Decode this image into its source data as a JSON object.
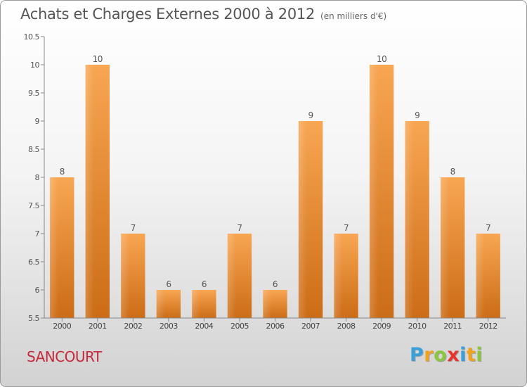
{
  "header": {
    "title": "Achats et Charges Externes 2000 à 2012",
    "subtitle": "(en milliers d'€)"
  },
  "footer": {
    "commune": "SANCOURT",
    "logo_letters": [
      "P",
      "r",
      "o",
      "x",
      "i",
      "t",
      "i"
    ],
    "logo_colors": [
      "#3aa0dc",
      "#f2a31c",
      "#8cc63f",
      "#e8342c",
      "#3aa0dc",
      "#f2a31c",
      "#8cc63f"
    ]
  },
  "chart_data": {
    "type": "bar",
    "categories": [
      "2000",
      "2001",
      "2002",
      "2003",
      "2004",
      "2005",
      "2006",
      "2007",
      "2008",
      "2009",
      "2010",
      "2011",
      "2012"
    ],
    "values": [
      8,
      10,
      7,
      6,
      6,
      7,
      6,
      9,
      7,
      10,
      9,
      8,
      7
    ],
    "data_labels": [
      "8",
      "10",
      "7",
      "6",
      "6",
      "7",
      "6",
      "9",
      "7",
      "10",
      "9",
      "8",
      "7"
    ],
    "title": "Achats et Charges Externes 2000 à 2012",
    "ylim": [
      5.5,
      10.5
    ],
    "yticks": [
      5.5,
      6,
      6.5,
      7,
      7.5,
      8,
      8.5,
      9,
      9.5,
      10,
      10.5
    ],
    "ytick_labels": [
      "5.5",
      "6",
      "6.5",
      "7",
      "7.5",
      "8",
      "8.5",
      "9",
      "9.5",
      "10",
      "10.5"
    ],
    "grid": false,
    "bar_color": "#f08a2c"
  }
}
